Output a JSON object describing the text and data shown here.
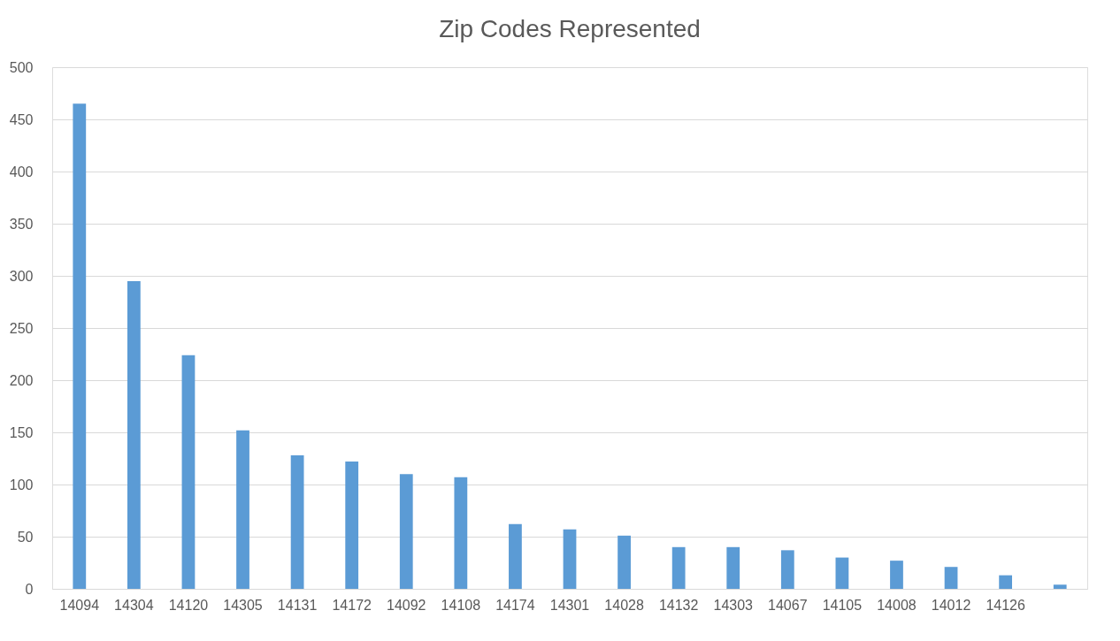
{
  "chart_data": {
    "type": "bar",
    "title": "Zip Codes Represented",
    "categories": [
      "14094",
      "14304",
      "14120",
      "14305",
      "14131",
      "14172",
      "14092",
      "14108",
      "14174",
      "14301",
      "14028",
      "14132",
      "14303",
      "14067",
      "14105",
      "14008",
      "14012",
      "14126",
      null
    ],
    "values": [
      465,
      295,
      224,
      152,
      128,
      122,
      110,
      107,
      62,
      57,
      51,
      40,
      40,
      37,
      30,
      27,
      21,
      13,
      4
    ],
    "color": "#5b9bd5",
    "ylim": [
      0,
      500
    ],
    "yticks": [
      0,
      50,
      100,
      150,
      200,
      250,
      300,
      350,
      400,
      450,
      500
    ],
    "grid": "y"
  }
}
